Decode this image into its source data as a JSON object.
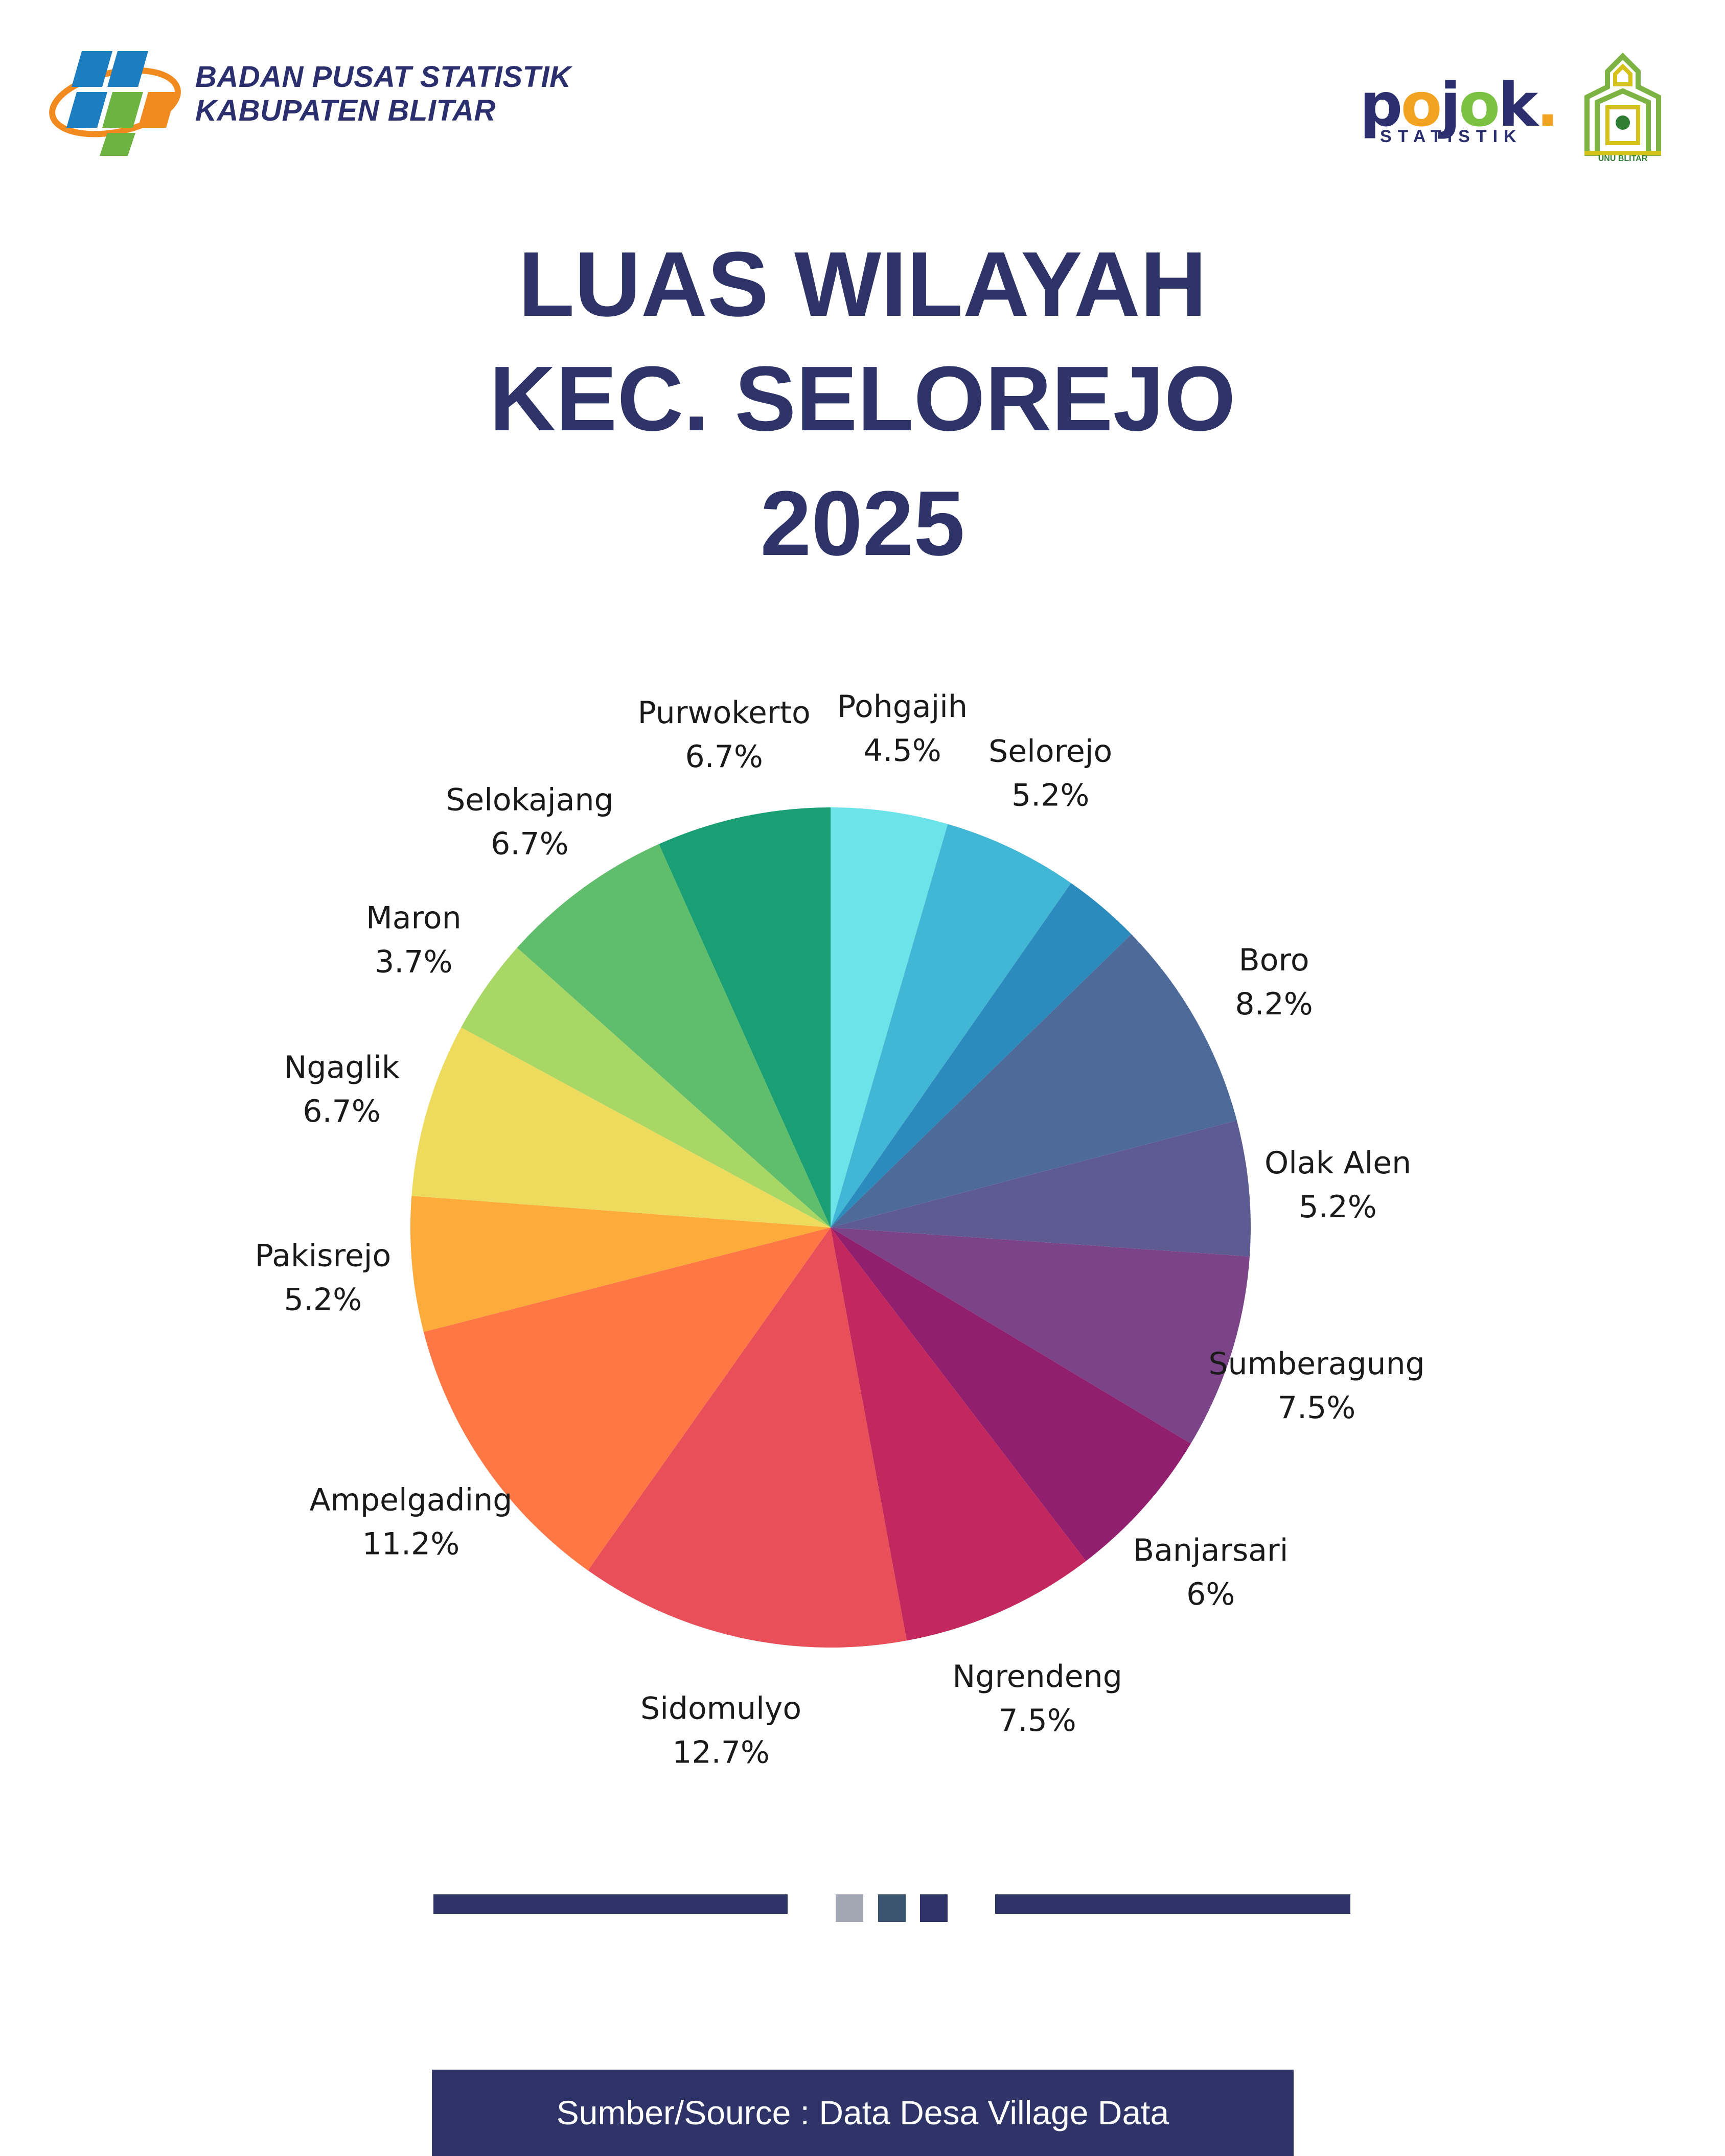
{
  "header": {
    "org_line1": "BADAN PUSAT STATISTIK",
    "org_line2": "KABUPATEN BLITAR",
    "pojok_word": "pojok",
    "pojok_sub": "STATISTIK",
    "unu_label": "UNU BLITAR"
  },
  "title": {
    "line1": "LUAS WILAYAH",
    "line2": "KEC. SELOREJO",
    "line3": "2025"
  },
  "colors": {
    "brand": "#2f3468",
    "bps_blue": "#1d7dc1",
    "bps_green": "#6cb43f",
    "bps_orange": "#f18a1f",
    "pojok_blue": "#2c2f6e",
    "pojok_orange": "#f2a322",
    "pojok_green": "#7cc242",
    "divider_sq1": "#a3a7b3",
    "divider_sq2": "#3b5570",
    "divider_sq3": "#2f3468"
  },
  "chart_data": {
    "type": "pie",
    "title": "LUAS WILAYAH KEC. SELOREJO 2025",
    "slices": [
      {
        "label": "Pohgajih",
        "value": 4.5,
        "pct_label": "4.5%",
        "color": "#6ce3e8"
      },
      {
        "label": "Selorejo",
        "value": 5.2,
        "pct_label": "5.2%",
        "color": "#42b6d5"
      },
      {
        "label": "",
        "value": 3.0,
        "pct_label": "",
        "color": "#2c8bbd"
      },
      {
        "label": "Boro",
        "value": 8.2,
        "pct_label": "8.2%",
        "color": "#4e6a98"
      },
      {
        "label": "Olak Alen",
        "value": 5.2,
        "pct_label": "5.2%",
        "color": "#5e5a92"
      },
      {
        "label": "Sumberagung",
        "value": 7.5,
        "pct_label": "7.5%",
        "color": "#7b4488"
      },
      {
        "label": "Banjarsari",
        "value": 6,
        "pct_label": "6%",
        "color": "#921f6e"
      },
      {
        "label": "Ngrendeng",
        "value": 7.5,
        "pct_label": "7.5%",
        "color": "#c2285e"
      },
      {
        "label": "Sidomulyo",
        "value": 12.7,
        "pct_label": "12.7%",
        "color": "#e84f58"
      },
      {
        "label": "Ampelgading",
        "value": 11.2,
        "pct_label": "11.2%",
        "color": "#ff7744"
      },
      {
        "label": "Pakisrejo",
        "value": 5.2,
        "pct_label": "5.2%",
        "color": "#fdab3a"
      },
      {
        "label": "Ngaglik",
        "value": 6.7,
        "pct_label": "6.7%",
        "color": "#ecdb5c"
      },
      {
        "label": "Maron",
        "value": 3.7,
        "pct_label": "3.7%",
        "color": "#a8d766"
      },
      {
        "label": "Selokajang",
        "value": 6.7,
        "pct_label": "6.7%",
        "color": "#5fbd6b"
      },
      {
        "label": "Purwokerto",
        "value": 6.7,
        "pct_label": "6.7%",
        "color": "#1a9f75"
      }
    ]
  },
  "footer": {
    "source": "Sumber/Source : Data Desa Village Data"
  }
}
